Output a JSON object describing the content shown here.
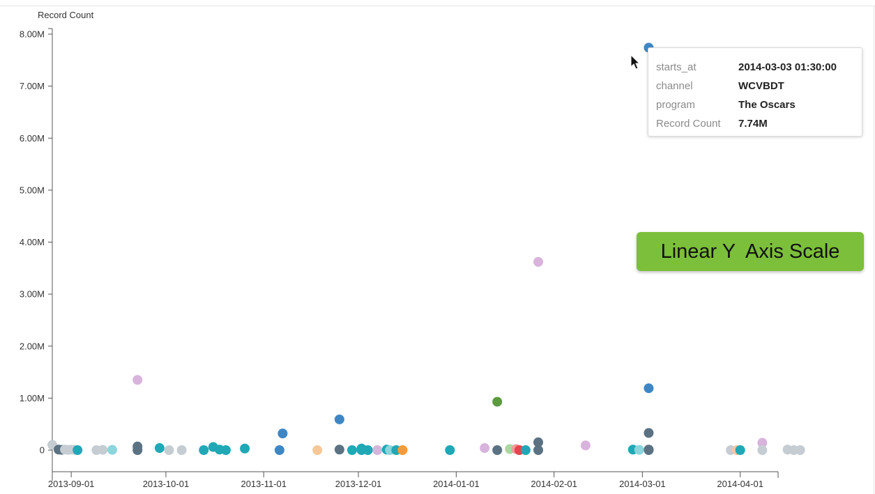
{
  "chart_data": {
    "type": "scatter",
    "y_axis_title": "Record Count",
    "y_scale": "linear",
    "ylim": [
      0,
      8000000
    ],
    "y_ticks": [
      {
        "value": 0,
        "label": "0"
      },
      {
        "value": 1000000,
        "label": "1.00M"
      },
      {
        "value": 2000000,
        "label": "2.00M"
      },
      {
        "value": 3000000,
        "label": "3.00M"
      },
      {
        "value": 4000000,
        "label": "4.00M"
      },
      {
        "value": 5000000,
        "label": "5.00M"
      },
      {
        "value": 6000000,
        "label": "6.00M"
      },
      {
        "value": 7000000,
        "label": "7.00M"
      },
      {
        "value": 8000000,
        "label": "8.00M"
      }
    ],
    "xlim": [
      "2013-08-26",
      "2014-04-13"
    ],
    "x_ticks": [
      "2013-09-01",
      "2013-10-01",
      "2013-11-01",
      "2013-12-01",
      "2014-01-01",
      "2014-02-01",
      "2014-03-01",
      "2014-04-01"
    ],
    "grid": false,
    "points": [
      {
        "x": "2013-08-26",
        "y": 100000,
        "color": "#c5cdd3"
      },
      {
        "x": "2013-08-28",
        "y": 10000,
        "color": "#5b7282"
      },
      {
        "x": "2013-08-29",
        "y": 5000,
        "color": "#5b7282"
      },
      {
        "x": "2013-08-30",
        "y": 10000,
        "color": "#c5cdd3"
      },
      {
        "x": "2013-08-31",
        "y": 5000,
        "color": "#c5cdd3"
      },
      {
        "x": "2013-09-01",
        "y": 8000,
        "color": "#c5cdd3"
      },
      {
        "x": "2013-09-02",
        "y": 5000,
        "color": "#c5cdd3"
      },
      {
        "x": "2013-09-03",
        "y": 0,
        "color": "#20a8b6"
      },
      {
        "x": "2013-09-09",
        "y": 0,
        "color": "#c5cdd3"
      },
      {
        "x": "2013-09-11",
        "y": 5000,
        "color": "#c5cdd3"
      },
      {
        "x": "2013-09-14",
        "y": 5000,
        "color": "#8cd5dc"
      },
      {
        "x": "2013-09-22",
        "y": 1350000,
        "color": "#d8b3dc"
      },
      {
        "x": "2013-09-22",
        "y": 70000,
        "color": "#5b7282"
      },
      {
        "x": "2013-09-22",
        "y": 0,
        "color": "#5b7282"
      },
      {
        "x": "2013-09-29",
        "y": 40000,
        "color": "#20a8b6"
      },
      {
        "x": "2013-10-02",
        "y": 0,
        "color": "#c5cdd3"
      },
      {
        "x": "2013-10-06",
        "y": 0,
        "color": "#c5cdd3"
      },
      {
        "x": "2013-10-13",
        "y": 0,
        "color": "#20a8b6"
      },
      {
        "x": "2013-10-16",
        "y": 60000,
        "color": "#20a8b6"
      },
      {
        "x": "2013-10-18",
        "y": 10000,
        "color": "#20a8b6"
      },
      {
        "x": "2013-10-20",
        "y": 0,
        "color": "#20a8b6"
      },
      {
        "x": "2013-10-26",
        "y": 30000,
        "color": "#20a8b6"
      },
      {
        "x": "2013-11-06",
        "y": 0,
        "color": "#3f87c4"
      },
      {
        "x": "2013-11-07",
        "y": 320000,
        "color": "#3f87c4"
      },
      {
        "x": "2013-11-18",
        "y": 0,
        "color": "#f6c899"
      },
      {
        "x": "2013-11-25",
        "y": 590000,
        "color": "#3f87c4"
      },
      {
        "x": "2013-11-25",
        "y": 10000,
        "color": "#5b7282"
      },
      {
        "x": "2013-11-29",
        "y": 0,
        "color": "#20a8b6"
      },
      {
        "x": "2013-12-02",
        "y": 0,
        "color": "#20a8b6"
      },
      {
        "x": "2013-12-02",
        "y": 30000,
        "color": "#20a8b6"
      },
      {
        "x": "2013-12-04",
        "y": 0,
        "color": "#20a8b6"
      },
      {
        "x": "2013-12-07",
        "y": 0,
        "color": "#d8b3dc"
      },
      {
        "x": "2013-12-10",
        "y": 10000,
        "color": "#20a8b6"
      },
      {
        "x": "2013-12-11",
        "y": 0,
        "color": "#8cd5dc"
      },
      {
        "x": "2013-12-13",
        "y": 0,
        "color": "#20a8b6"
      },
      {
        "x": "2013-12-15",
        "y": 0,
        "color": "#f59b3b"
      },
      {
        "x": "2013-12-30",
        "y": 0,
        "color": "#20a8b6"
      },
      {
        "x": "2014-01-10",
        "y": 40000,
        "color": "#d8b3dc"
      },
      {
        "x": "2014-01-14",
        "y": 0,
        "color": "#5b7282"
      },
      {
        "x": "2014-01-14",
        "y": 930000,
        "color": "#5c9a3f"
      },
      {
        "x": "2014-01-18",
        "y": 20000,
        "color": "#a8d8a0"
      },
      {
        "x": "2014-01-20",
        "y": 20000,
        "color": "#f19b9b"
      },
      {
        "x": "2014-01-21",
        "y": 0,
        "color": "#e8434e"
      },
      {
        "x": "2014-01-23",
        "y": 0,
        "color": "#20a8b6"
      },
      {
        "x": "2014-01-27",
        "y": 3620000,
        "color": "#d8b3dc"
      },
      {
        "x": "2014-01-27",
        "y": 150000,
        "color": "#5b7282"
      },
      {
        "x": "2014-01-27",
        "y": 0,
        "color": "#5b7282"
      },
      {
        "x": "2014-02-11",
        "y": 90000,
        "color": "#d8b3dc"
      },
      {
        "x": "2014-02-26",
        "y": 10000,
        "color": "#20a8b6"
      },
      {
        "x": "2014-02-28",
        "y": 5000,
        "color": "#8cd5dc"
      },
      {
        "x": "2014-03-03",
        "y": 7740000,
        "color": "#3f87c4"
      },
      {
        "x": "2014-03-03",
        "y": 1190000,
        "color": "#3f87c4"
      },
      {
        "x": "2014-03-03",
        "y": 330000,
        "color": "#5b7282"
      },
      {
        "x": "2014-03-03",
        "y": 10000,
        "color": "#5b7282"
      },
      {
        "x": "2014-03-03",
        "y": 0,
        "color": "#5b7282"
      },
      {
        "x": "2014-03-29",
        "y": 0,
        "color": "#c5cdd3"
      },
      {
        "x": "2014-03-31",
        "y": 0,
        "color": "#f6c899"
      },
      {
        "x": "2014-04-01",
        "y": 0,
        "color": "#20a8b6"
      },
      {
        "x": "2014-04-08",
        "y": 140000,
        "color": "#d8b3dc"
      },
      {
        "x": "2014-04-08",
        "y": 0,
        "color": "#c5cdd3"
      },
      {
        "x": "2014-04-16",
        "y": 10000,
        "color": "#c5cdd3"
      },
      {
        "x": "2014-04-18",
        "y": 0,
        "color": "#c5cdd3"
      },
      {
        "x": "2014-04-20",
        "y": 0,
        "color": "#c5cdd3"
      }
    ]
  },
  "tooltip": {
    "rows": [
      {
        "key": "starts_at",
        "value": "2014-03-03 01:30:00"
      },
      {
        "key": "channel",
        "value": "WCVBDT"
      },
      {
        "key": "program",
        "value": "The Oscars"
      },
      {
        "key": "Record Count",
        "value": "7.74M"
      }
    ]
  },
  "badge": {
    "text": "Linear Y  Axis Scale",
    "background": "#7cbf3a"
  },
  "icons": {
    "cursor": "mouse-pointer-icon"
  }
}
